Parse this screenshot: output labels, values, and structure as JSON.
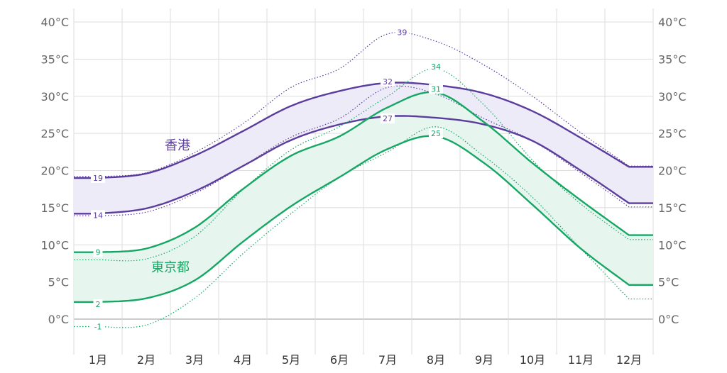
{
  "chart_data": {
    "type": "area",
    "months": [
      "1月",
      "2月",
      "3月",
      "4月",
      "5月",
      "6月",
      "7月",
      "8月",
      "9月",
      "10月",
      "11月",
      "12月"
    ],
    "y_ticks": [
      0,
      5,
      10,
      15,
      20,
      25,
      30,
      35,
      40
    ],
    "y_tick_labels": [
      "0°C",
      "5°C",
      "10°C",
      "15°C",
      "20°C",
      "25°C",
      "30°C",
      "35°C",
      "40°C"
    ],
    "ylim": [
      -2,
      42
    ],
    "grid": true,
    "colors": {
      "hongkong": "#5b3d9e",
      "hongkong_fill": "#eeebf8",
      "tokyo": "#16a765",
      "tokyo_fill": "#e6f5ee",
      "grid": "#dddddd",
      "zero_line": "#999999"
    },
    "series": [
      {
        "name": "香港",
        "key": "hongkong",
        "normal_high": [
          19.0,
          19.6,
          22.0,
          25.3,
          28.7,
          30.7,
          31.8,
          31.5,
          30.4,
          28.0,
          24.4,
          20.5
        ],
        "normal_low": [
          14.2,
          14.9,
          17.2,
          20.6,
          24.1,
          26.2,
          27.3,
          27.1,
          26.2,
          24.0,
          20.0,
          15.6
        ],
        "record_high": [
          19.2,
          19.7,
          22.4,
          26.3,
          31.2,
          33.7,
          38.4,
          37.4,
          34.2,
          30.0,
          25.1,
          20.6
        ],
        "record_low": [
          13.9,
          14.4,
          16.9,
          20.6,
          24.5,
          27.0,
          31.2,
          30.3,
          27.0,
          24.0,
          19.7,
          15.1
        ],
        "labels": [
          {
            "month": 1,
            "value": 19,
            "text": "19"
          },
          {
            "month": 1,
            "value": 14,
            "text": "14"
          },
          {
            "month": 7,
            "value": 32,
            "text": "32"
          },
          {
            "month": 7,
            "value": 27,
            "text": "27"
          },
          {
            "month": 7.3,
            "value": 38.6,
            "text": "39"
          }
        ]
      },
      {
        "name": "東京都",
        "key": "tokyo",
        "normal_high": [
          9.0,
          9.5,
          12.3,
          17.5,
          22.0,
          24.6,
          28.5,
          30.5,
          26.5,
          21.0,
          16.0,
          11.3
        ],
        "normal_low": [
          2.3,
          2.8,
          5.2,
          10.4,
          15.2,
          19.1,
          22.9,
          24.6,
          21.0,
          15.4,
          9.5,
          4.6
        ],
        "record_high": [
          8.0,
          8.1,
          11.1,
          17.4,
          22.8,
          25.9,
          30.0,
          33.7,
          28.8,
          21.4,
          15.5,
          10.7
        ],
        "record_low": [
          -1.0,
          -0.8,
          2.8,
          8.8,
          14.2,
          19.1,
          22.5,
          25.9,
          21.9,
          16.4,
          9.5,
          2.7
        ],
        "labels": [
          {
            "month": 1,
            "value": 9,
            "text": "9"
          },
          {
            "month": 1,
            "value": 2,
            "text": "2"
          },
          {
            "month": 8,
            "value": 31,
            "text": "31"
          },
          {
            "month": 8,
            "value": 25,
            "text": "25"
          },
          {
            "month": 8,
            "value": 34,
            "text": "34"
          },
          {
            "month": 1,
            "value": -1,
            "text": "-1"
          }
        ]
      }
    ]
  }
}
